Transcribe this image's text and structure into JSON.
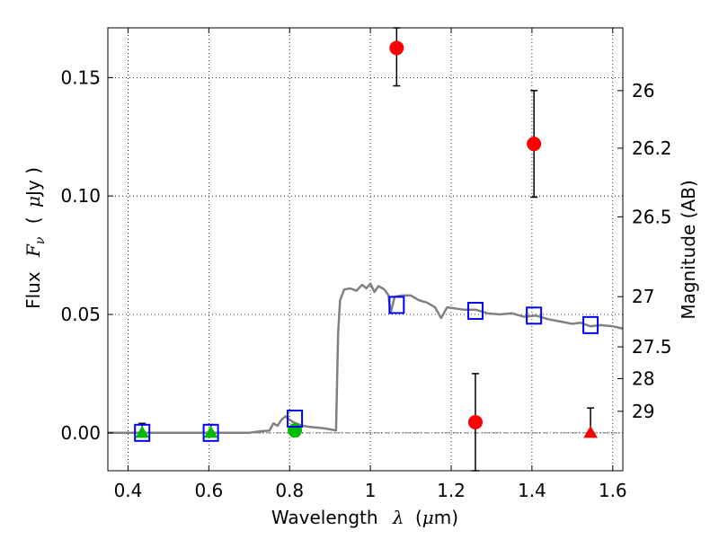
{
  "chart_data": {
    "type": "scatter",
    "xlabel": {
      "prefix": "Wavelength",
      "symbol": "λ",
      "unit_open": "(",
      "unit_mu": "μ",
      "unit_rest": "m)"
    },
    "ylabel": {
      "prefix": "Flux",
      "symbol": "F",
      "sub": "ν",
      "unit_open": "(",
      "unit_mu": "μ",
      "unit_rest": "Jy )"
    },
    "y2label": "Magnitude (AB)",
    "xlim": [
      0.35,
      1.625
    ],
    "ylim": [
      -0.016,
      0.171
    ],
    "grid": true,
    "x_ticks": [
      0.4,
      0.6,
      0.8,
      1.0,
      1.2,
      1.4,
      1.6
    ],
    "x_tick_labels": [
      "0.4",
      "0.6",
      "0.8",
      "1",
      "1.2",
      "1.4",
      "1.6"
    ],
    "y_ticks": [
      0.0,
      0.05,
      0.1,
      0.15
    ],
    "y_tick_labels": [
      "0.00",
      "0.05",
      "0.10",
      "0.15"
    ],
    "y2_ticks": [
      {
        "label": "26",
        "flux": 0.1445
      },
      {
        "label": "26.2",
        "flux": 0.1202
      },
      {
        "label": "26.5",
        "flux": 0.0912
      },
      {
        "label": "27",
        "flux": 0.0575
      },
      {
        "label": "27.5",
        "flux": 0.0363
      },
      {
        "label": "28",
        "flux": 0.0229
      },
      {
        "label": "29",
        "flux": 0.0091
      }
    ],
    "zero_line": 0.0,
    "series": [
      {
        "marker": "circle",
        "color": "#ff0000",
        "points": [
          {
            "x": 1.065,
            "y": 0.1625,
            "yerr_low": 0.1465,
            "yerr_high": 0.171
          },
          {
            "x": 1.405,
            "y": 0.122,
            "yerr_low": 0.0995,
            "yerr_high": 0.1445
          },
          {
            "x": 1.26,
            "y": 0.0045,
            "yerr_low": -0.016,
            "yerr_high": 0.025
          }
        ]
      },
      {
        "marker": "triangle",
        "color": "#ff0000",
        "points": [
          {
            "x": 1.545,
            "y": 0.0,
            "yerr_low": 0.0,
            "yerr_high": 0.0105
          }
        ]
      },
      {
        "marker": "triangle",
        "color": "#00bb00",
        "points": [
          {
            "x": 0.435,
            "y": 0.0,
            "yerr_low": 0.0,
            "yerr_high": 0.004
          },
          {
            "x": 0.605,
            "y": 0.0,
            "yerr_low": 0.0,
            "yerr_high": 0.0035
          }
        ]
      },
      {
        "marker": "circle",
        "color": "#00bb00",
        "points": [
          {
            "x": 0.813,
            "y": 0.001,
            "yerr_low": -0.0015,
            "yerr_high": 0.0035
          }
        ]
      },
      {
        "marker": "square",
        "color": "#0000ff",
        "points": [
          {
            "x": 0.435,
            "y": 0.0
          },
          {
            "x": 0.605,
            "y": 0.0
          },
          {
            "x": 0.813,
            "y": 0.006
          },
          {
            "x": 1.065,
            "y": 0.054
          },
          {
            "x": 1.26,
            "y": 0.0515
          },
          {
            "x": 1.405,
            "y": 0.0495
          },
          {
            "x": 1.545,
            "y": 0.0455
          }
        ]
      },
      {
        "type": "line",
        "color": "#808080",
        "points": [
          [
            0.35,
            0.0
          ],
          [
            0.5,
            0.0
          ],
          [
            0.7,
            0.0
          ],
          [
            0.72,
            0.0005
          ],
          [
            0.75,
            0.001
          ],
          [
            0.76,
            0.004
          ],
          [
            0.77,
            0.003
          ],
          [
            0.78,
            0.0055
          ],
          [
            0.79,
            0.007
          ],
          [
            0.8,
            0.0055
          ],
          [
            0.81,
            0.0045
          ],
          [
            0.83,
            0.003
          ],
          [
            0.85,
            0.0025
          ],
          [
            0.88,
            0.002
          ],
          [
            0.9,
            0.0015
          ],
          [
            0.915,
            0.001
          ],
          [
            0.92,
            0.042
          ],
          [
            0.925,
            0.056
          ],
          [
            0.935,
            0.0605
          ],
          [
            0.95,
            0.061
          ],
          [
            0.965,
            0.06
          ],
          [
            0.98,
            0.0625
          ],
          [
            0.99,
            0.061
          ],
          [
            1.0,
            0.063
          ],
          [
            1.01,
            0.0595
          ],
          [
            1.02,
            0.062
          ],
          [
            1.035,
            0.0605
          ],
          [
            1.045,
            0.058
          ],
          [
            1.05,
            0.0505
          ],
          [
            1.06,
            0.0575
          ],
          [
            1.08,
            0.058
          ],
          [
            1.1,
            0.058
          ],
          [
            1.12,
            0.056
          ],
          [
            1.14,
            0.055
          ],
          [
            1.16,
            0.053
          ],
          [
            1.175,
            0.0485
          ],
          [
            1.19,
            0.053
          ],
          [
            1.21,
            0.0525
          ],
          [
            1.23,
            0.052
          ],
          [
            1.26,
            0.052
          ],
          [
            1.29,
            0.0505
          ],
          [
            1.32,
            0.05
          ],
          [
            1.35,
            0.0505
          ],
          [
            1.38,
            0.049
          ],
          [
            1.41,
            0.0495
          ],
          [
            1.44,
            0.048
          ],
          [
            1.47,
            0.047
          ],
          [
            1.5,
            0.046
          ],
          [
            1.52,
            0.0465
          ],
          [
            1.545,
            0.045
          ],
          [
            1.57,
            0.0455
          ],
          [
            1.6,
            0.045
          ],
          [
            1.625,
            0.044
          ]
        ]
      }
    ]
  }
}
